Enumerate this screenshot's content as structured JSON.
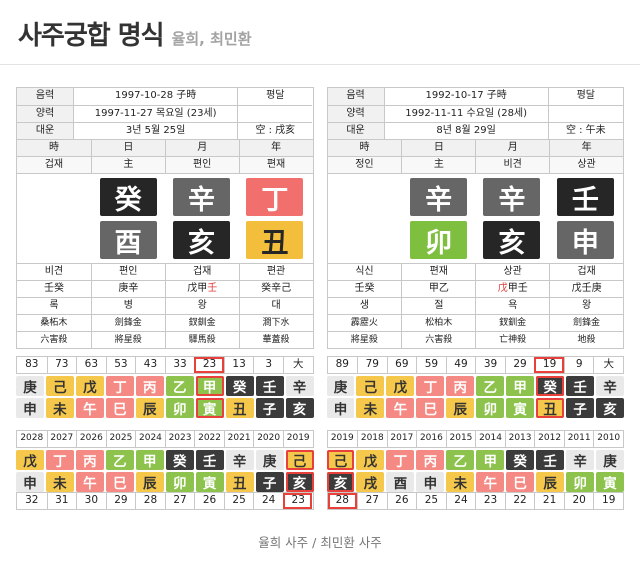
{
  "page": {
    "title": "사주궁합 명식",
    "subtitle": "율희, 최민환",
    "footer": "율희 사주 / 최민환 사주"
  },
  "element_map": {
    "甲": "wood",
    "乙": "wood",
    "寅": "wood",
    "卯": "wood",
    "丙": "fire",
    "丁": "fire",
    "巳": "fire",
    "午": "fire",
    "戊": "earth",
    "己": "earth",
    "丑": "earth",
    "辰": "earth",
    "未": "earth",
    "戌": "earth",
    "庚": "metal",
    "辛": "metal",
    "申": "metal",
    "酉": "metal",
    "壬": "water",
    "癸": "water",
    "子": "water",
    "亥": "water"
  },
  "palette": {
    "big": {
      "wood": {
        "bg": "#7fbf3f",
        "fg": "#ffffff"
      },
      "fire": {
        "bg": "#f1706e",
        "fg": "#ffffff"
      },
      "earth": {
        "bg": "#f2be3b",
        "fg": "#262626"
      },
      "metal": {
        "bg": "#666666",
        "fg": "#ffffff"
      },
      "water": {
        "bg": "#262626",
        "fg": "#ffffff"
      }
    },
    "small": {
      "wood": {
        "bg": "#8dc34d",
        "fg": "#ffffff"
      },
      "fire": {
        "bg": "#f58a84",
        "fg": "#ffffff"
      },
      "earth": {
        "bg": "#f5c84c",
        "fg": "#333333"
      },
      "metal": {
        "bg": "#e9e9e9",
        "fg": "#333333"
      },
      "water": {
        "bg": "#3b3b3b",
        "fg": "#ffffff"
      }
    }
  },
  "highlight_color": "#e8403a",
  "people": [
    {
      "name": "율희",
      "info_rows": [
        {
          "label": "음력",
          "value": "1997-10-28 子時",
          "extra": "평달"
        },
        {
          "label": "양력",
          "value": "1997-11-27 목요일 (23세)",
          "extra": ""
        },
        {
          "label": "대운",
          "value": "3년 5월 25일",
          "extra": "空 : 戌亥"
        }
      ],
      "pillars": {
        "headers": [
          "時",
          "日",
          "月",
          "年"
        ],
        "ten_gods": [
          "겁재",
          "主",
          "편인",
          "편재"
        ],
        "stems": [
          "",
          "癸",
          "辛",
          "丁"
        ],
        "branches": [
          "",
          "酉",
          "亥",
          "丑"
        ],
        "branch_gods": [
          "비견",
          "편인",
          "겁재",
          "편관"
        ],
        "hidden_stems": [
          {
            "text": "壬癸"
          },
          {
            "text": "庚辛"
          },
          {
            "text": "戊甲壬",
            "red": 2
          },
          {
            "text": "癸辛己"
          }
        ],
        "stages": [
          "록",
          "병",
          "왕",
          "대"
        ],
        "napeum": [
          "桑柘木",
          "劍鋒金",
          "釵釧金",
          "澗下水"
        ],
        "sinsal": [
          "六害殺",
          "將星殺",
          "驛馬殺",
          "華蓋殺"
        ]
      },
      "daeun": {
        "ages": [
          "83",
          "73",
          "63",
          "53",
          "43",
          "33",
          "23",
          "13",
          "3",
          "大"
        ],
        "stems": [
          "庚",
          "己",
          "戊",
          "丁",
          "丙",
          "乙",
          "甲",
          "癸",
          "壬",
          "辛"
        ],
        "branches": [
          "申",
          "未",
          "午",
          "巳",
          "辰",
          "卯",
          "寅",
          "丑",
          "子",
          "亥"
        ],
        "highlight": 6
      },
      "seun": {
        "years": [
          "2028",
          "2027",
          "2026",
          "2025",
          "2024",
          "2023",
          "2022",
          "2021",
          "2020",
          "2019"
        ],
        "stems": [
          "戊",
          "丁",
          "丙",
          "乙",
          "甲",
          "癸",
          "壬",
          "辛",
          "庚",
          "己"
        ],
        "branches": [
          "申",
          "未",
          "午",
          "巳",
          "辰",
          "卯",
          "寅",
          "丑",
          "子",
          "亥"
        ],
        "ages": [
          "32",
          "31",
          "30",
          "29",
          "28",
          "27",
          "26",
          "25",
          "24",
          "23"
        ],
        "highlight": 9
      }
    },
    {
      "name": "최민환",
      "info_rows": [
        {
          "label": "음력",
          "value": "1992-10-17 子時",
          "extra": "평달"
        },
        {
          "label": "양력",
          "value": "1992-11-11 수요일 (28세)",
          "extra": ""
        },
        {
          "label": "대운",
          "value": "8년 8월 29일",
          "extra": "空 : 午未"
        }
      ],
      "pillars": {
        "headers": [
          "時",
          "日",
          "月",
          "年"
        ],
        "ten_gods": [
          "정인",
          "主",
          "비견",
          "상관"
        ],
        "stems": [
          "",
          "辛",
          "辛",
          "壬"
        ],
        "branches": [
          "",
          "卯",
          "亥",
          "申"
        ],
        "branch_gods": [
          "식신",
          "편재",
          "상관",
          "겁재"
        ],
        "hidden_stems": [
          {
            "text": "壬癸"
          },
          {
            "text": "甲乙"
          },
          {
            "text": "戊甲壬",
            "red": 0
          },
          {
            "text": "戊壬庚"
          }
        ],
        "stages": [
          "생",
          "절",
          "욕",
          "왕"
        ],
        "napeum": [
          "霹靂火",
          "松柏木",
          "釵釧金",
          "劍鋒金"
        ],
        "sinsal": [
          "將星殺",
          "六害殺",
          "亡神殺",
          "地殺"
        ]
      },
      "daeun": {
        "ages": [
          "89",
          "79",
          "69",
          "59",
          "49",
          "39",
          "29",
          "19",
          "9",
          "大"
        ],
        "stems": [
          "庚",
          "己",
          "戊",
          "丁",
          "丙",
          "乙",
          "甲",
          "癸",
          "壬",
          "辛"
        ],
        "branches": [
          "申",
          "未",
          "午",
          "巳",
          "辰",
          "卯",
          "寅",
          "丑",
          "子",
          "亥"
        ],
        "highlight": 7
      },
      "seun": {
        "years": [
          "2019",
          "2018",
          "2017",
          "2016",
          "2015",
          "2014",
          "2013",
          "2012",
          "2011",
          "2010"
        ],
        "stems": [
          "己",
          "戊",
          "丁",
          "丙",
          "乙",
          "甲",
          "癸",
          "壬",
          "辛",
          "庚"
        ],
        "branches": [
          "亥",
          "戌",
          "酉",
          "申",
          "未",
          "午",
          "巳",
          "辰",
          "卯",
          "寅"
        ],
        "ages": [
          "28",
          "27",
          "26",
          "25",
          "24",
          "23",
          "22",
          "21",
          "20",
          "19"
        ],
        "highlight": 0
      }
    }
  ]
}
